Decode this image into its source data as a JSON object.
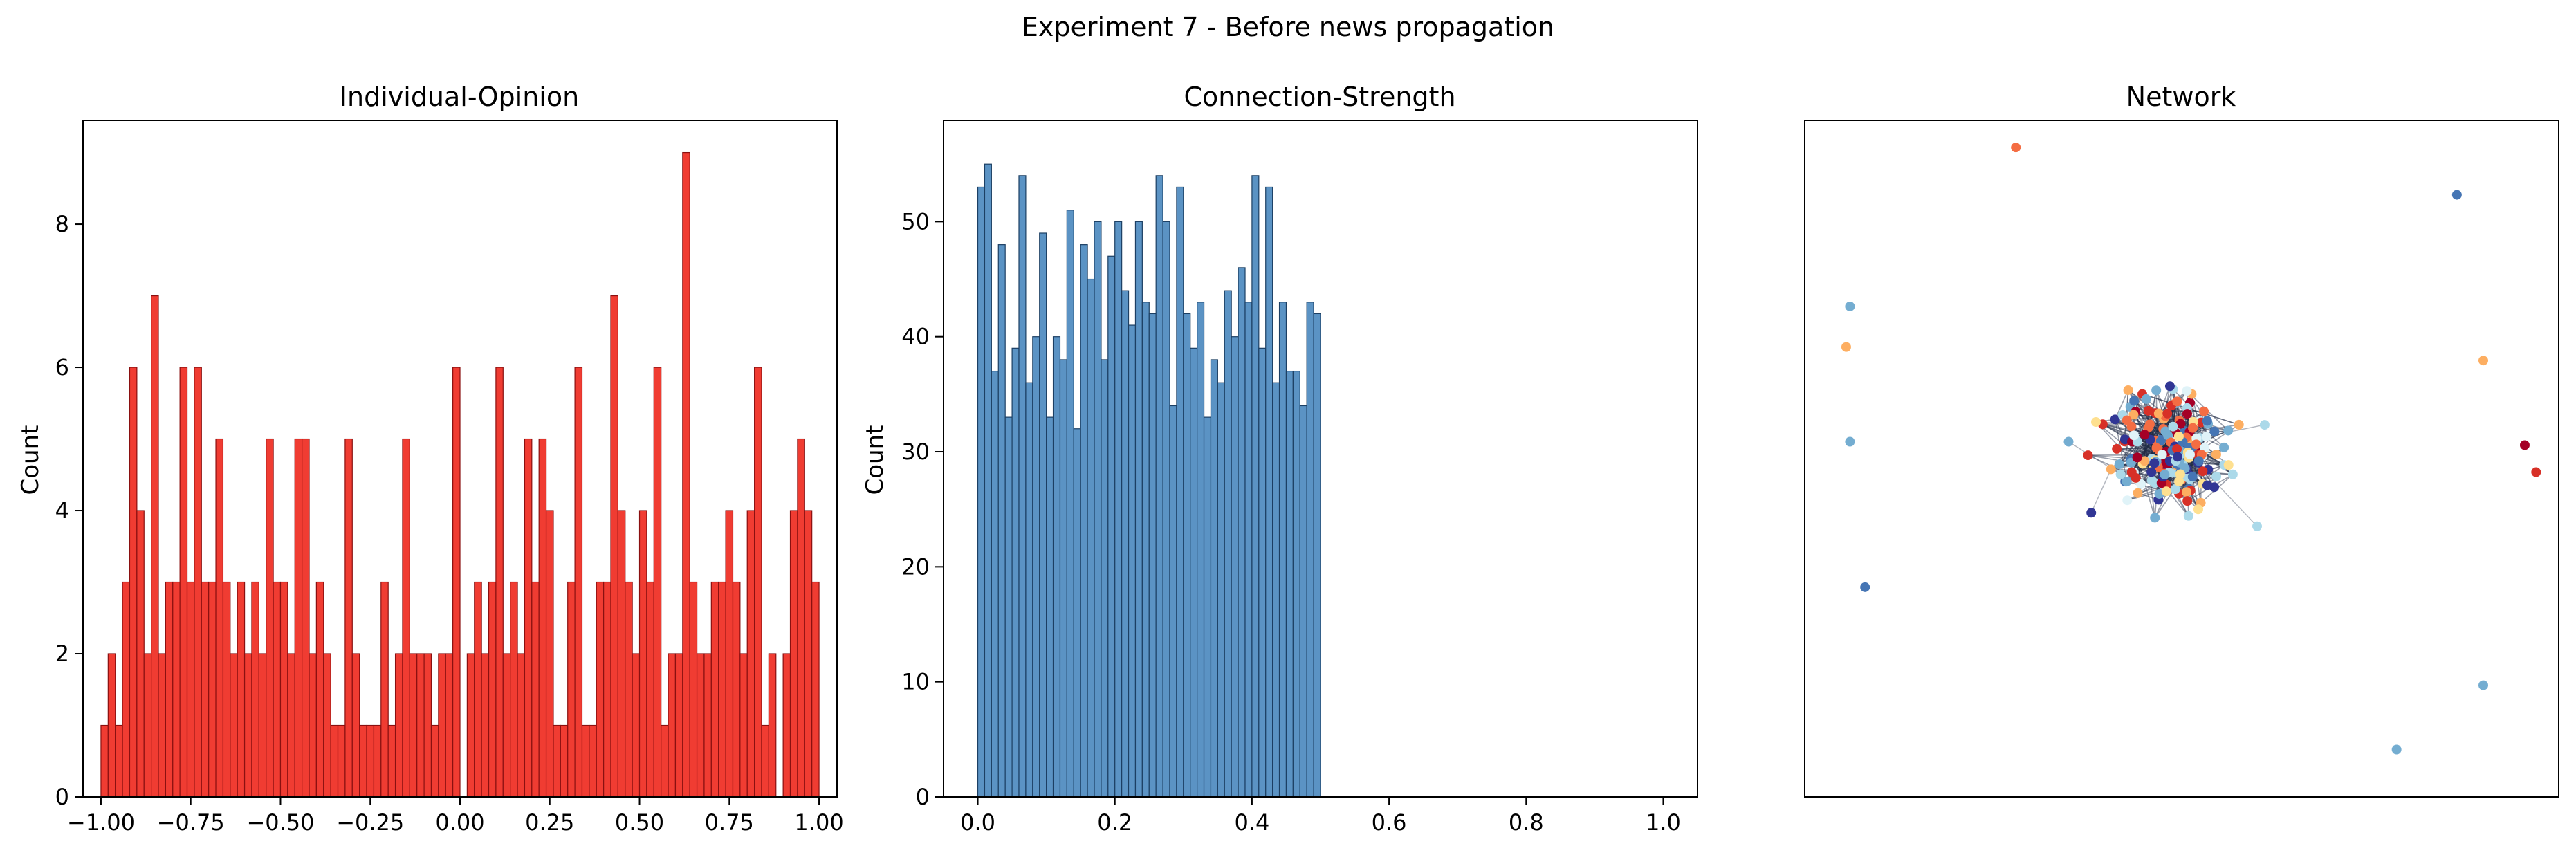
{
  "figure": {
    "suptitle": "Experiment 7 - Before news propagation"
  },
  "chart_data": [
    {
      "type": "bar",
      "title": "Individual-Opinion",
      "xlabel": "",
      "ylabel": "Count",
      "xlim": [
        -1.05,
        1.05
      ],
      "ylim": [
        0,
        9.45
      ],
      "xticks": [
        -1.0,
        -0.75,
        -0.5,
        -0.25,
        0.0,
        0.25,
        0.5,
        0.75,
        1.0
      ],
      "xtick_labels": [
        "−1.00",
        "−0.75",
        "−0.50",
        "−0.25",
        "0.00",
        "0.25",
        "0.50",
        "0.75",
        "1.00"
      ],
      "yticks": [
        0,
        2,
        4,
        6,
        8
      ],
      "ytick_labels": [
        "0",
        "2",
        "4",
        "6",
        "8"
      ],
      "bins": {
        "start": -1.0,
        "end": 1.0,
        "count": 100
      },
      "bar_color": "#f03c32",
      "edge_color": "#8a1010",
      "values": [
        1,
        2,
        1,
        3,
        6,
        4,
        2,
        7,
        2,
        3,
        3,
        6,
        3,
        6,
        3,
        3,
        5,
        3,
        2,
        3,
        2,
        3,
        2,
        5,
        3,
        3,
        2,
        5,
        5,
        2,
        3,
        2,
        1,
        1,
        5,
        2,
        1,
        1,
        1,
        3,
        1,
        2,
        5,
        2,
        2,
        2,
        1,
        2,
        2,
        6,
        0,
        2,
        3,
        2,
        3,
        6,
        2,
        3,
        2,
        5,
        3,
        5,
        4,
        1,
        1,
        3,
        6,
        1,
        1,
        3,
        3,
        7,
        4,
        3,
        2,
        4,
        3,
        6,
        1,
        2,
        2,
        9,
        3,
        2,
        2,
        3,
        3,
        4,
        3,
        2,
        4,
        6,
        1,
        2,
        0,
        2,
        4,
        5,
        4,
        3
      ],
      "grid": false,
      "legend": "none"
    },
    {
      "type": "bar",
      "title": "Connection-Strength",
      "xlabel": "",
      "ylabel": "Count",
      "xlim": [
        -0.05,
        1.05
      ],
      "ylim": [
        0,
        58.8
      ],
      "xticks": [
        0.0,
        0.2,
        0.4,
        0.6,
        0.8,
        1.0
      ],
      "xtick_labels": [
        "0.0",
        "0.2",
        "0.4",
        "0.6",
        "0.8",
        "1.0"
      ],
      "yticks": [
        0,
        10,
        20,
        30,
        40,
        50
      ],
      "ytick_labels": [
        "0",
        "10",
        "20",
        "30",
        "40",
        "50"
      ],
      "bins": {
        "start": 0.0,
        "end": 1.0,
        "count": 100
      },
      "bar_color": "#5b93c4",
      "edge_color": "#1c3f63",
      "values": [
        53,
        55,
        37,
        48,
        33,
        39,
        54,
        36,
        40,
        49,
        33,
        40,
        38,
        51,
        32,
        48,
        45,
        50,
        38,
        47,
        50,
        44,
        41,
        50,
        43,
        42,
        54,
        50,
        34,
        53,
        42,
        39,
        43,
        33,
        38,
        36,
        44,
        40,
        46,
        43,
        54,
        39,
        53,
        36,
        43,
        37,
        37,
        34,
        43,
        42,
        0,
        0,
        0,
        0,
        0,
        0,
        0,
        0,
        0,
        0,
        0,
        0,
        0,
        0,
        0,
        0,
        0,
        0,
        0,
        0,
        0,
        0,
        0,
        0,
        0,
        0,
        0,
        0,
        0,
        0,
        0,
        0,
        0,
        0,
        0,
        0,
        0,
        0,
        0,
        0,
        0,
        0,
        0,
        0,
        0,
        0,
        0,
        0,
        0,
        0
      ],
      "grid": false,
      "legend": "none"
    },
    {
      "type": "scatter",
      "title": "Network",
      "xlabel": "",
      "ylabel": "",
      "axes_visible": false,
      "xlim": [
        -1.0,
        1.0
      ],
      "ylim": [
        -1.0,
        1.0
      ],
      "palette": [
        "#a50026",
        "#d73027",
        "#f46d43",
        "#fdae61",
        "#fee090",
        "#e0f3f8",
        "#abd9e9",
        "#74add1",
        "#4575b4",
        "#313695"
      ],
      "outlier_nodes": [
        {
          "x": -0.44,
          "y": 0.92,
          "color": "#f46d43"
        },
        {
          "x": 0.73,
          "y": 0.78,
          "color": "#4575b4"
        },
        {
          "x": -0.88,
          "y": 0.45,
          "color": "#74add1"
        },
        {
          "x": -0.89,
          "y": 0.33,
          "color": "#fdae61"
        },
        {
          "x": 0.8,
          "y": 0.29,
          "color": "#fdae61"
        },
        {
          "x": -0.88,
          "y": 0.05,
          "color": "#74add1"
        },
        {
          "x": 0.91,
          "y": 0.04,
          "color": "#a50026"
        },
        {
          "x": 0.94,
          "y": -0.04,
          "color": "#d73027"
        },
        {
          "x": -0.84,
          "y": -0.38,
          "color": "#4575b4"
        },
        {
          "x": 0.8,
          "y": -0.67,
          "color": "#74add1"
        },
        {
          "x": 0.57,
          "y": -0.86,
          "color": "#74add1"
        }
      ],
      "cluster": {
        "center": [
          -0.03,
          0.03
        ],
        "extent_x": [
          -0.35,
          0.32
        ],
        "extent_y": [
          -0.37,
          0.38
        ],
        "node_count": 190,
        "edge_color": "#1f2a44"
      },
      "grid": false,
      "legend": "none"
    }
  ]
}
